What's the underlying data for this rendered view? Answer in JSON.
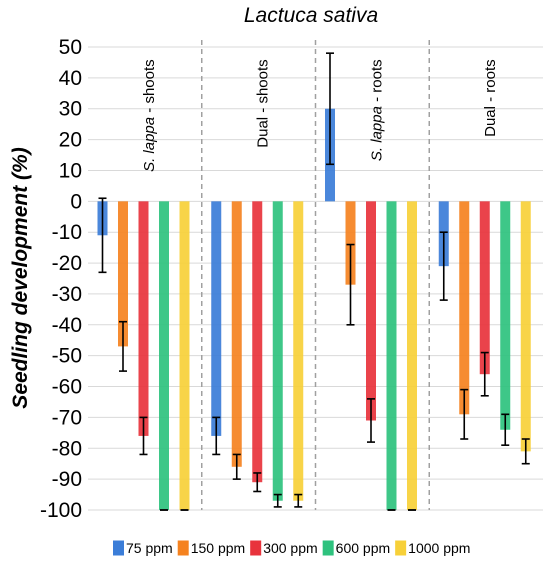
{
  "chart_data": {
    "type": "bar",
    "title": "Lactuca sativa",
    "xlabel": "",
    "ylabel": "Seedling development (%)",
    "ylim": [
      -100,
      50
    ],
    "yticks": [
      50,
      40,
      30,
      20,
      10,
      0,
      -10,
      -20,
      -30,
      -40,
      -50,
      -60,
      -70,
      -80,
      -90,
      -100
    ],
    "grid": "horizontal",
    "legend_position": "bottom",
    "categories": [
      "S. lappa - shoots",
      "Dual - shoots",
      "S. lappa - roots",
      "Dual - roots"
    ],
    "series": [
      {
        "name": "75 ppm",
        "color": "#3b7dd8",
        "values": [
          -11,
          -76,
          30,
          -21
        ],
        "errors": [
          12,
          6,
          18,
          11
        ]
      },
      {
        "name": "150 ppm",
        "color": "#f5821f",
        "values": [
          -47,
          -86,
          -27,
          -69
        ],
        "errors": [
          8,
          4,
          13,
          8
        ]
      },
      {
        "name": "300 ppm",
        "color": "#e8333c",
        "values": [
          -76,
          -91,
          -71,
          -56
        ],
        "errors": [
          6,
          3,
          7,
          7
        ]
      },
      {
        "name": "600 ppm",
        "color": "#2ec27e",
        "values": [
          -100,
          -97,
          -100,
          -74
        ],
        "errors": [
          0,
          2,
          0,
          5
        ]
      },
      {
        "name": "1000 ppm",
        "color": "#f7d038",
        "values": [
          -100,
          -97,
          -100,
          -81
        ],
        "errors": [
          0,
          2,
          0,
          4
        ]
      }
    ]
  }
}
